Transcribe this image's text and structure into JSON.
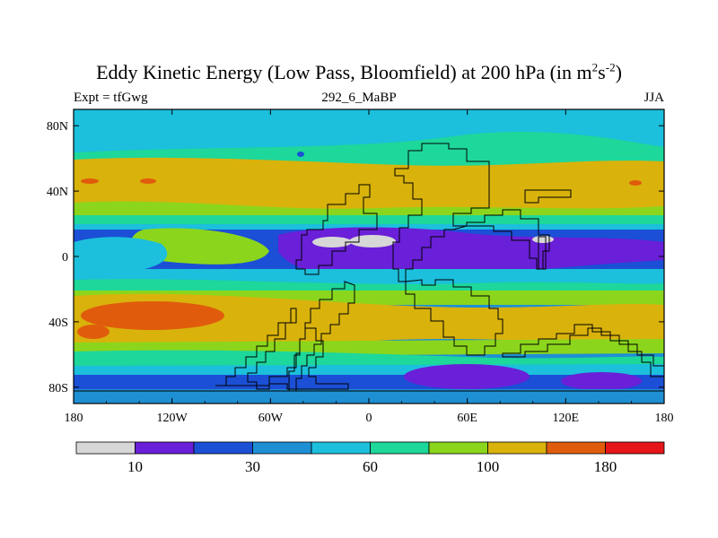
{
  "title": {
    "main": "Eddy Kinetic Energy (Low Pass, Bloomfield) at 200 hPa (in m",
    "sup1": "2",
    "mid": "s",
    "sup2": "-2",
    "close": ")"
  },
  "left_label": "Expt = tfGwg",
  "center_label": "292_6_MaBP",
  "right_label": "JJA",
  "x_ticks": [
    "180",
    "120W",
    "60W",
    "0",
    "60E",
    "120E",
    "180"
  ],
  "y_ticks": [
    "80N",
    "40N",
    "0",
    "40S",
    "80S"
  ],
  "colorbar": {
    "colors": [
      "#d7d7d7",
      "#6a1fd8",
      "#1b4fd6",
      "#1f8fd4",
      "#1cbfdc",
      "#1ed79a",
      "#8bd61c",
      "#d9b20c",
      "#e05c0c",
      "#e5151a"
    ],
    "labels": [
      {
        "text": "10",
        "boundary": 1
      },
      {
        "text": "30",
        "boundary": 3
      },
      {
        "text": "60",
        "boundary": 5
      },
      {
        "text": "100",
        "boundary": 7
      },
      {
        "text": "180",
        "boundary": 9
      }
    ]
  }
}
